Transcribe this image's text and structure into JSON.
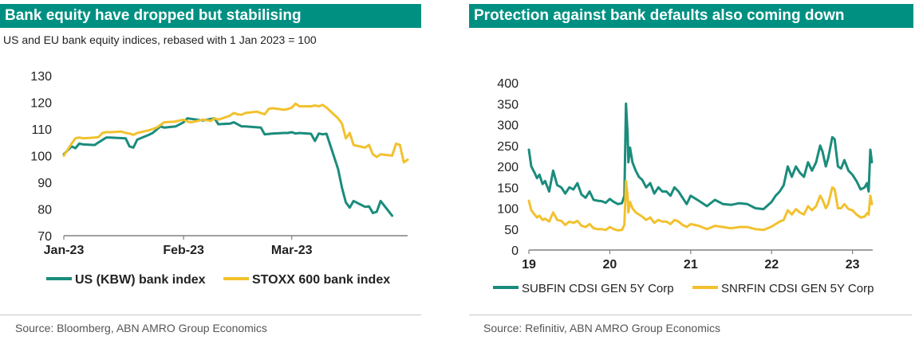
{
  "left": {
    "title": "Bank equity have dropped but stabilising",
    "subtitle": "US and EU bank equity indices, rebased with 1 Jan 2023 = 100",
    "source": "Source: Bloomberg, ABN AMRO Group Economics"
  },
  "right": {
    "title": "Protection against bank defaults also coming down",
    "source": "Source: Refinitiv, ABN AMRO Group Economics"
  },
  "colors": {
    "teal": "#1a8c7c",
    "gold": "#f2c12e",
    "title_bg": "#009082"
  },
  "chart_data": [
    {
      "type": "line",
      "title": "Bank equity have dropped but stabilising",
      "subtitle": "US and EU bank equity indices, rebased with 1 Jan 2023 = 100",
      "x_tick_labels": [
        "Jan-23",
        "Feb-23",
        "Mar-23"
      ],
      "x_ticks": [
        "2023-01-01",
        "2023-02-01",
        "2023-03-01"
      ],
      "xlim": [
        "2023-01-01",
        "2023-03-31"
      ],
      "ylim": [
        70,
        130
      ],
      "y_ticks": [
        70,
        80,
        90,
        100,
        110,
        120,
        130
      ],
      "grid": false,
      "legend": "bottom",
      "series": [
        {
          "name": "US (KBW) bank index",
          "color": "#1a8c7c",
          "x": [
            "2023-01-01",
            "2023-01-03",
            "2023-01-04",
            "2023-01-05",
            "2023-01-06",
            "2023-01-09",
            "2023-01-10",
            "2023-01-12",
            "2023-01-13",
            "2023-01-17",
            "2023-01-18",
            "2023-01-19",
            "2023-01-20",
            "2023-01-23",
            "2023-01-24",
            "2023-01-26",
            "2023-01-27",
            "2023-01-30",
            "2023-02-01",
            "2023-02-02",
            "2023-02-03",
            "2023-02-06",
            "2023-02-07",
            "2023-02-09",
            "2023-02-10",
            "2023-02-13",
            "2023-02-14",
            "2023-02-16",
            "2023-02-17",
            "2023-02-21",
            "2023-02-22",
            "2023-02-24",
            "2023-02-27",
            "2023-02-28",
            "2023-03-01",
            "2023-03-02",
            "2023-03-03",
            "2023-03-06",
            "2023-03-07",
            "2023-03-08",
            "2023-03-09",
            "2023-03-10",
            "2023-03-13",
            "2023-03-14",
            "2023-03-15",
            "2023-03-16",
            "2023-03-17",
            "2023-03-20",
            "2023-03-21",
            "2023-03-22",
            "2023-03-23",
            "2023-03-24",
            "2023-03-27"
          ],
          "values": [
            100.5,
            103.5,
            102.8,
            104.5,
            104.2,
            104.0,
            105.0,
            106.8,
            106.8,
            106.5,
            103.5,
            103.0,
            106.0,
            107.8,
            108.5,
            111.0,
            110.5,
            111.0,
            112.5,
            114.0,
            113.8,
            113.2,
            113.5,
            114.0,
            111.8,
            112.0,
            112.5,
            111.0,
            111.0,
            110.5,
            108.0,
            108.3,
            108.5,
            108.5,
            108.8,
            108.3,
            108.5,
            108.2,
            105.5,
            108.3,
            108.0,
            108.2,
            95.0,
            88.0,
            82.5,
            80.5,
            83.0,
            80.8,
            81.0,
            78.5,
            79.0,
            83.0,
            77.5
          ]
        },
        {
          "name": "STOXX 600 bank index",
          "color": "#f2c12e",
          "x": [
            "2023-01-01",
            "2023-01-03",
            "2023-01-04",
            "2023-01-05",
            "2023-01-06",
            "2023-01-09",
            "2023-01-10",
            "2023-01-11",
            "2023-01-12",
            "2023-01-13",
            "2023-01-16",
            "2023-01-17",
            "2023-01-18",
            "2023-01-19",
            "2023-01-20",
            "2023-01-23",
            "2023-01-24",
            "2023-01-25",
            "2023-01-26",
            "2023-01-27",
            "2023-01-30",
            "2023-01-31",
            "2023-02-01",
            "2023-02-02",
            "2023-02-03",
            "2023-02-06",
            "2023-02-07",
            "2023-02-08",
            "2023-02-09",
            "2023-02-10",
            "2023-02-13",
            "2023-02-14",
            "2023-02-15",
            "2023-02-16",
            "2023-02-17",
            "2023-02-20",
            "2023-02-21",
            "2023-02-22",
            "2023-02-23",
            "2023-02-24",
            "2023-02-27",
            "2023-02-28",
            "2023-03-01",
            "2023-03-02",
            "2023-03-03",
            "2023-03-06",
            "2023-03-07",
            "2023-03-08",
            "2023-03-09",
            "2023-03-10",
            "2023-03-13",
            "2023-03-14",
            "2023-03-15",
            "2023-03-16",
            "2023-03-17",
            "2023-03-20",
            "2023-03-21",
            "2023-03-22",
            "2023-03-23",
            "2023-03-24",
            "2023-03-27",
            "2023-03-28",
            "2023-03-29",
            "2023-03-30",
            "2023-03-31"
          ],
          "values": [
            100.0,
            104.5,
            106.5,
            106.8,
            106.5,
            106.8,
            107.0,
            108.5,
            108.8,
            108.8,
            109.0,
            108.5,
            108.3,
            107.8,
            108.5,
            109.5,
            110.0,
            110.5,
            111.5,
            112.5,
            112.8,
            113.2,
            113.5,
            112.8,
            112.5,
            113.5,
            113.3,
            113.0,
            114.0,
            113.5,
            115.0,
            116.0,
            115.5,
            115.3,
            116.0,
            116.5,
            116.0,
            115.5,
            117.5,
            117.8,
            117.2,
            117.5,
            118.0,
            119.5,
            118.5,
            118.5,
            118.8,
            118.5,
            119.0,
            118.0,
            114.0,
            112.0,
            106.5,
            108.5,
            104.0,
            103.0,
            104.0,
            100.5,
            99.5,
            100.5,
            100.0,
            104.5,
            104.0,
            97.5,
            98.5
          ]
        }
      ]
    },
    {
      "type": "line",
      "title": "Protection against bank defaults also coming down",
      "x_tick_labels": [
        "19",
        "20",
        "21",
        "22",
        "23"
      ],
      "x_ticks": [
        2019,
        2020,
        2021,
        2022,
        2023
      ],
      "xlim": [
        2019,
        2023.25
      ],
      "ylim": [
        0,
        400
      ],
      "y_ticks": [
        0,
        50,
        100,
        150,
        200,
        250,
        300,
        350,
        400
      ],
      "grid": false,
      "legend": "bottom",
      "series": [
        {
          "name": "SUBFIN CDSI GEN 5Y Corp",
          "color": "#1a8c7c",
          "x": [
            2019.0,
            2019.03,
            2019.07,
            2019.1,
            2019.13,
            2019.17,
            2019.2,
            2019.25,
            2019.3,
            2019.35,
            2019.4,
            2019.45,
            2019.5,
            2019.55,
            2019.6,
            2019.65,
            2019.7,
            2019.75,
            2019.8,
            2019.85,
            2019.9,
            2019.95,
            2020.0,
            2020.05,
            2020.1,
            2020.15,
            2020.18,
            2020.2,
            2020.22,
            2020.23,
            2020.25,
            2020.28,
            2020.32,
            2020.36,
            2020.4,
            2020.45,
            2020.5,
            2020.55,
            2020.6,
            2020.65,
            2020.7,
            2020.75,
            2020.8,
            2020.85,
            2020.9,
            2020.95,
            2021.0,
            2021.1,
            2021.2,
            2021.3,
            2021.4,
            2021.5,
            2021.6,
            2021.7,
            2021.8,
            2021.9,
            2022.0,
            2022.05,
            2022.1,
            2022.15,
            2022.2,
            2022.25,
            2022.3,
            2022.35,
            2022.4,
            2022.45,
            2022.5,
            2022.55,
            2022.6,
            2022.63,
            2022.67,
            2022.7,
            2022.75,
            2022.78,
            2022.82,
            2022.86,
            2022.9,
            2022.95,
            2023.0,
            2023.05,
            2023.1,
            2023.15,
            2023.18,
            2023.2,
            2023.22,
            2023.24
          ],
          "values": [
            240,
            200,
            185,
            172,
            180,
            158,
            165,
            140,
            190,
            155,
            150,
            135,
            150,
            145,
            160,
            133,
            125,
            140,
            120,
            118,
            117,
            113,
            122,
            115,
            110,
            112,
            130,
            350,
            280,
            210,
            245,
            210,
            190,
            175,
            168,
            150,
            160,
            135,
            150,
            140,
            140,
            130,
            150,
            140,
            125,
            110,
            130,
            118,
            105,
            120,
            110,
            108,
            112,
            110,
            100,
            98,
            115,
            130,
            140,
            155,
            200,
            175,
            200,
            185,
            175,
            210,
            190,
            210,
            250,
            235,
            200,
            220,
            270,
            265,
            200,
            195,
            215,
            190,
            180,
            165,
            145,
            150,
            160,
            140,
            240,
            210
          ]
        },
        {
          "name": "SNRFIN CDSI GEN 5Y Corp",
          "color": "#f2c12e",
          "x": [
            2019.0,
            2019.03,
            2019.07,
            2019.1,
            2019.13,
            2019.17,
            2019.2,
            2019.25,
            2019.3,
            2019.35,
            2019.4,
            2019.45,
            2019.5,
            2019.55,
            2019.6,
            2019.65,
            2019.7,
            2019.75,
            2019.8,
            2019.85,
            2019.9,
            2019.95,
            2020.0,
            2020.05,
            2020.1,
            2020.15,
            2020.18,
            2020.2,
            2020.22,
            2020.23,
            2020.25,
            2020.28,
            2020.32,
            2020.36,
            2020.4,
            2020.45,
            2020.5,
            2020.55,
            2020.6,
            2020.65,
            2020.7,
            2020.75,
            2020.8,
            2020.85,
            2020.9,
            2020.95,
            2021.0,
            2021.1,
            2021.2,
            2021.3,
            2021.4,
            2021.5,
            2021.6,
            2021.7,
            2021.8,
            2021.9,
            2022.0,
            2022.05,
            2022.1,
            2022.15,
            2022.2,
            2022.25,
            2022.3,
            2022.35,
            2022.4,
            2022.45,
            2022.5,
            2022.55,
            2022.6,
            2022.63,
            2022.67,
            2022.7,
            2022.75,
            2022.78,
            2022.82,
            2022.86,
            2022.9,
            2022.95,
            2023.0,
            2023.05,
            2023.1,
            2023.15,
            2023.18,
            2023.2,
            2023.22,
            2023.24
          ],
          "values": [
            118,
            95,
            85,
            78,
            82,
            72,
            75,
            68,
            90,
            72,
            70,
            60,
            68,
            65,
            70,
            58,
            55,
            62,
            52,
            50,
            50,
            48,
            55,
            50,
            47,
            48,
            60,
            165,
            130,
            90,
            115,
            100,
            90,
            85,
            80,
            72,
            78,
            65,
            72,
            68,
            68,
            62,
            72,
            68,
            60,
            55,
            62,
            58,
            50,
            58,
            55,
            52,
            55,
            55,
            50,
            48,
            56,
            62,
            68,
            72,
            95,
            85,
            98,
            90,
            85,
            105,
            95,
            105,
            130,
            120,
            100,
            110,
            150,
            145,
            100,
            100,
            110,
            98,
            95,
            85,
            78,
            80,
            88,
            85,
            130,
            110
          ]
        }
      ]
    }
  ]
}
